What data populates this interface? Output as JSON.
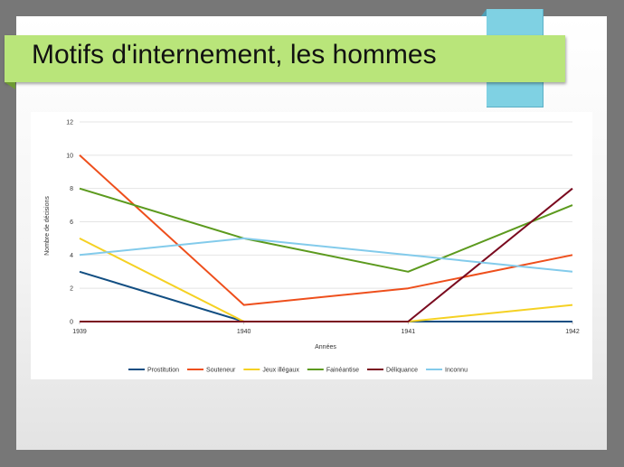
{
  "slide": {
    "title": "Motifs d'internement, les hommes"
  },
  "chart_data": {
    "type": "line",
    "title": "",
    "xlabel": "Années",
    "ylabel": "Nombre de décisions",
    "x": [
      "1939",
      "1940",
      "1941",
      "1942"
    ],
    "yticks": [
      "0",
      "2",
      "4",
      "6",
      "8",
      "10",
      "12"
    ],
    "ylim": [
      0,
      12
    ],
    "grid": true,
    "legend_position": "bottom",
    "series": [
      {
        "name": "Prostitution",
        "color": "#124e82",
        "values": [
          3,
          0,
          0,
          0
        ]
      },
      {
        "name": "Souteneur",
        "color": "#ee4f1c",
        "values": [
          10,
          1,
          2,
          4
        ]
      },
      {
        "name": "Jeux illégaux",
        "color": "#f5d123",
        "values": [
          5,
          0,
          0,
          1
        ]
      },
      {
        "name": "Fainéantise",
        "color": "#5c9a1e",
        "values": [
          8,
          5,
          3,
          7
        ]
      },
      {
        "name": "Déliquance",
        "color": "#7a0a1f",
        "values": [
          0,
          0,
          0,
          8
        ]
      },
      {
        "name": "Inconnu",
        "color": "#83cbeb",
        "values": [
          4,
          5,
          4,
          3
        ]
      }
    ]
  }
}
